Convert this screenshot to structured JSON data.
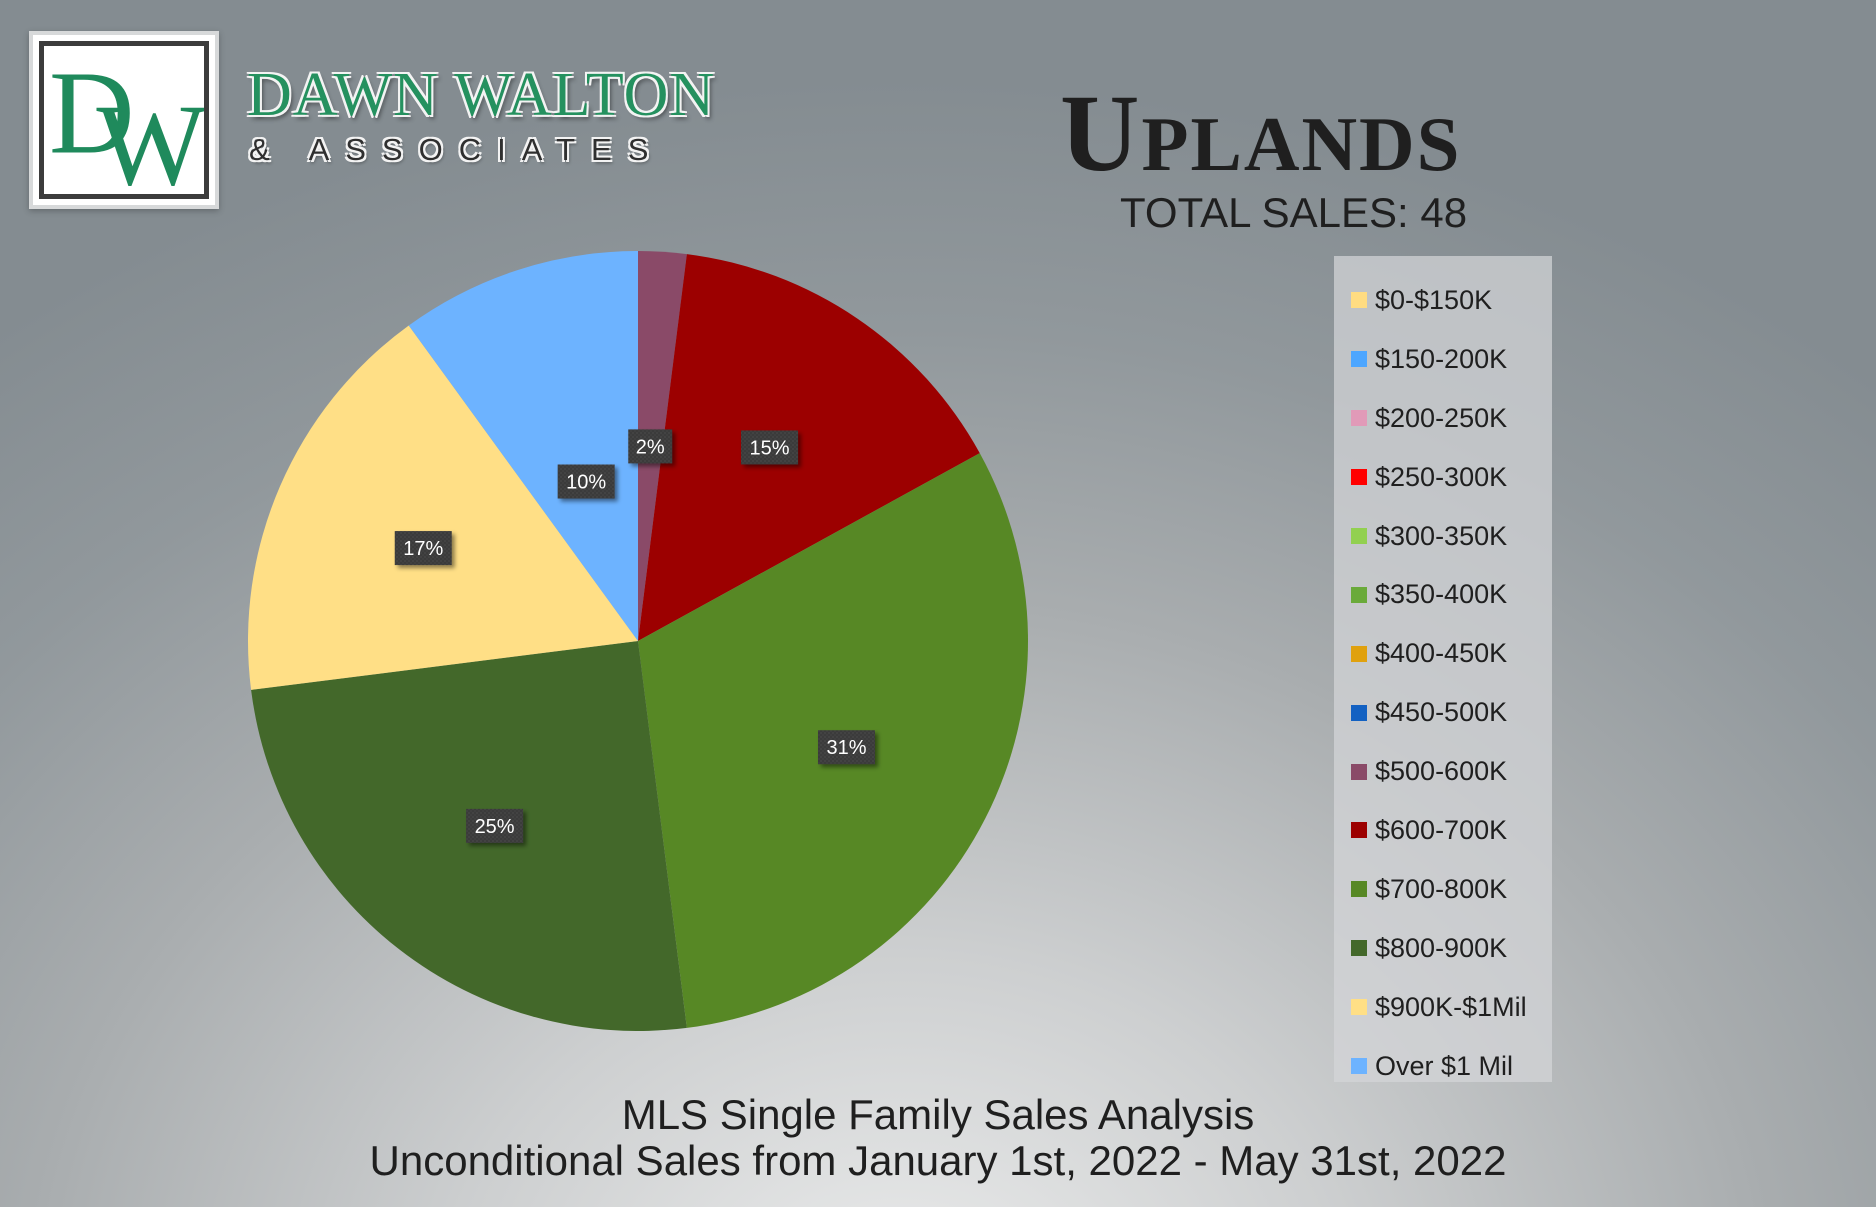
{
  "brand": {
    "monogram": "DW",
    "name": "DAWN WALTON",
    "subtitle": "& ASSOCIATES",
    "colors": {
      "green": "#1f8a5c",
      "dark": "#2d2d2d"
    }
  },
  "header": {
    "title": "Uplands",
    "total_sales": "TOTAL SALES: 48"
  },
  "footer": {
    "line1": "MLS Single Family Sales Analysis",
    "line2": "Unconditional Sales from January 1st, 2022 - May 31st, 2022"
  },
  "chart_data": {
    "type": "pie",
    "title": "",
    "slices": [
      {
        "label": "$0-$150K",
        "value": 0,
        "data_label": "",
        "color": "#ffdc82"
      },
      {
        "label": "$150-200K",
        "value": 0,
        "data_label": "",
        "color": "#4da6ff"
      },
      {
        "label": "$200-250K",
        "value": 0,
        "data_label": "",
        "color": "#e19ab8"
      },
      {
        "label": "$250-300K",
        "value": 0,
        "data_label": "",
        "color": "#ff0000"
      },
      {
        "label": "$300-350K",
        "value": 0,
        "data_label": "",
        "color": "#92d050"
      },
      {
        "label": "$350-400K",
        "value": 0,
        "data_label": "",
        "color": "#6aaa3a"
      },
      {
        "label": "$400-450K",
        "value": 0,
        "data_label": "",
        "color": "#e0a10e"
      },
      {
        "label": "$450-500K",
        "value": 0,
        "data_label": "",
        "color": "#1361c2"
      },
      {
        "label": "$500-600K",
        "value": 2,
        "data_label": "2%",
        "color": "#8a4a68"
      },
      {
        "label": "$600-700K",
        "value": 15,
        "data_label": "15%",
        "color": "#9c0000"
      },
      {
        "label": "$700-800K",
        "value": 31,
        "data_label": "31%",
        "color": "#578825"
      },
      {
        "label": "$800-900K",
        "value": 25,
        "data_label": "25%",
        "color": "#43682a"
      },
      {
        "label": "$900K-$1Mil",
        "value": 17,
        "data_label": "17%",
        "color": "#ffdf86"
      },
      {
        "label": "Over $1 Mil",
        "value": 10,
        "data_label": "10%",
        "color": "#6db3ff"
      }
    ],
    "legend_position": "right"
  }
}
